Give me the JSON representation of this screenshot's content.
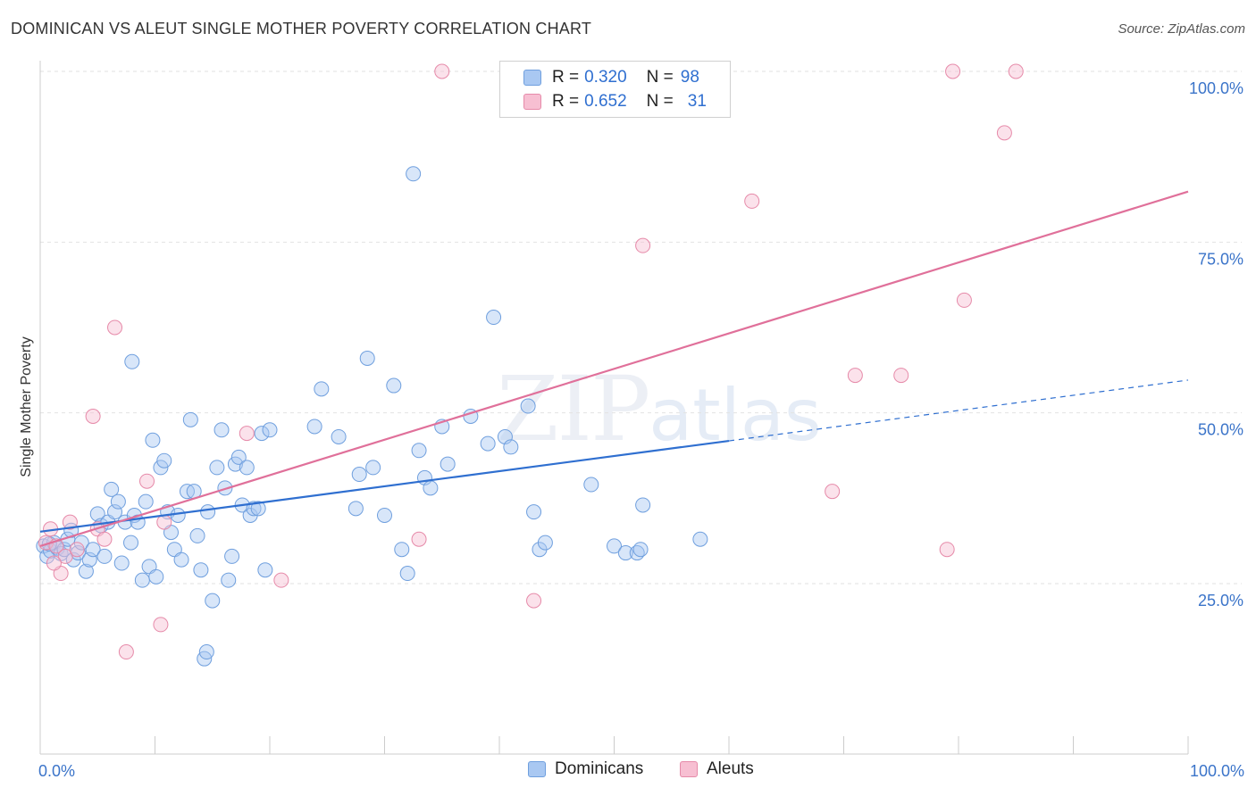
{
  "header": {
    "title": "DOMINICAN VS ALEUT SINGLE MOTHER POVERTY CORRELATION CHART",
    "source": "Source: ZipAtlas.com"
  },
  "watermark": {
    "zip": "ZIP",
    "atlas": "atlas"
  },
  "legend": {
    "rows": [
      {
        "r_label": "R =",
        "r_value": "0.320",
        "n_label": "N =",
        "n_value": "98",
        "color": "#a9c8f2",
        "border": "#6f9fde"
      },
      {
        "r_label": "R =",
        "r_value": "0.652",
        "n_label": "N =",
        "n_value": "31",
        "color": "#f7bfd2",
        "border": "#e68aa9"
      }
    ]
  },
  "bottom_legend": [
    {
      "label": "Dominicans",
      "color": "#a9c8f2",
      "border": "#6f9fde"
    },
    {
      "label": "Aleuts",
      "color": "#f7bfd2",
      "border": "#e68aa9"
    }
  ],
  "chart_data": {
    "type": "scatter",
    "title": "DOMINICAN VS ALEUT SINGLE MOTHER POVERTY CORRELATION CHART",
    "xlabel": "",
    "ylabel": "Single Mother Poverty",
    "xlim": [
      0,
      100
    ],
    "ylim": [
      0,
      105
    ],
    "x_tick_labels": [
      {
        "value": 0,
        "label": "0.0%"
      },
      {
        "value": 100,
        "label": "100.0%"
      }
    ],
    "y_tick_labels": [
      {
        "value": 25,
        "label": "25.0%"
      },
      {
        "value": 50,
        "label": "50.0%"
      },
      {
        "value": 75,
        "label": "75.0%"
      },
      {
        "value": 100,
        "label": "100.0%"
      }
    ],
    "grid": "horizontal dashed",
    "series": [
      {
        "name": "Dominicans",
        "color": "#6f9fde",
        "fill": "#a9c8f2",
        "trend": {
          "x": [
            0,
            60
          ],
          "y": [
            32.6,
            45.9
          ],
          "dashed_extension_to": [
            100,
            54.8
          ],
          "color": "#2f6fd0"
        },
        "points": [
          [
            0.3,
            30.5
          ],
          [
            0.6,
            29.0
          ],
          [
            0.9,
            29.8
          ],
          [
            1.2,
            31.0
          ],
          [
            1.5,
            30.2
          ],
          [
            1.8,
            29.4
          ],
          [
            2.1,
            30.0
          ],
          [
            2.4,
            31.5
          ],
          [
            2.7,
            32.8
          ],
          [
            2.9,
            28.5
          ],
          [
            3.3,
            29.5
          ],
          [
            3.6,
            31.0
          ],
          [
            4.0,
            26.8
          ],
          [
            4.3,
            28.5
          ],
          [
            4.6,
            30.0
          ],
          [
            5.0,
            35.2
          ],
          [
            5.3,
            33.5
          ],
          [
            5.6,
            29.0
          ],
          [
            5.9,
            34.0
          ],
          [
            6.2,
            38.8
          ],
          [
            6.5,
            35.5
          ],
          [
            6.8,
            37.0
          ],
          [
            7.1,
            28.0
          ],
          [
            7.4,
            34.0
          ],
          [
            7.9,
            31.0
          ],
          [
            8.2,
            35.0
          ],
          [
            8.5,
            34.0
          ],
          [
            8.9,
            25.5
          ],
          [
            9.2,
            37.0
          ],
          [
            9.5,
            27.5
          ],
          [
            9.8,
            46.0
          ],
          [
            10.1,
            26.0
          ],
          [
            10.5,
            42.0
          ],
          [
            10.8,
            43.0
          ],
          [
            11.1,
            35.5
          ],
          [
            11.4,
            32.5
          ],
          [
            11.7,
            30.0
          ],
          [
            12.0,
            35.0
          ],
          [
            12.3,
            28.5
          ],
          [
            12.8,
            38.5
          ],
          [
            13.1,
            49.0
          ],
          [
            13.4,
            38.5
          ],
          [
            13.7,
            32.0
          ],
          [
            14.0,
            27.0
          ],
          [
            14.3,
            14.0
          ],
          [
            14.6,
            35.5
          ],
          [
            15.0,
            22.5
          ],
          [
            15.4,
            42.0
          ],
          [
            15.8,
            47.5
          ],
          [
            16.1,
            39.0
          ],
          [
            16.4,
            25.5
          ],
          [
            16.7,
            29.0
          ],
          [
            17.0,
            42.5
          ],
          [
            17.3,
            43.5
          ],
          [
            17.6,
            36.5
          ],
          [
            18.0,
            42.0
          ],
          [
            18.3,
            35.0
          ],
          [
            18.6,
            36.0
          ],
          [
            19.0,
            36.0
          ],
          [
            19.3,
            47.0
          ],
          [
            19.6,
            27.0
          ],
          [
            20.0,
            47.5
          ],
          [
            8.0,
            57.5
          ],
          [
            14.5,
            15.0
          ],
          [
            23.9,
            48.0
          ],
          [
            24.5,
            53.5
          ],
          [
            26.0,
            46.5
          ],
          [
            27.5,
            36.0
          ],
          [
            27.8,
            41.0
          ],
          [
            28.5,
            58.0
          ],
          [
            29.0,
            42.0
          ],
          [
            30.0,
            35.0
          ],
          [
            30.8,
            54.0
          ],
          [
            31.5,
            30.0
          ],
          [
            32.0,
            26.5
          ],
          [
            32.5,
            85.0
          ],
          [
            33.0,
            44.5
          ],
          [
            33.5,
            40.5
          ],
          [
            34.0,
            39.0
          ],
          [
            35.0,
            48.0
          ],
          [
            35.5,
            42.5
          ],
          [
            37.5,
            49.5
          ],
          [
            39.0,
            45.5
          ],
          [
            39.5,
            64.0
          ],
          [
            40.5,
            46.5
          ],
          [
            41.0,
            45.0
          ],
          [
            42.5,
            51.0
          ],
          [
            43.0,
            35.5
          ],
          [
            43.5,
            30.0
          ],
          [
            44.0,
            31.0
          ],
          [
            48.0,
            39.5
          ],
          [
            50.0,
            30.5
          ],
          [
            51.0,
            29.5
          ],
          [
            52.0,
            29.5
          ],
          [
            52.5,
            36.5
          ],
          [
            57.5,
            31.5
          ],
          [
            52.3,
            30.0
          ],
          [
            0.8,
            30.8
          ]
        ]
      },
      {
        "name": "Aleuts",
        "color": "#e68aa9",
        "fill": "#f7bfd2",
        "trend": {
          "x": [
            0,
            100
          ],
          "y": [
            30.5,
            82.4
          ],
          "color": "#e0709a"
        },
        "points": [
          [
            0.5,
            31.0
          ],
          [
            0.9,
            33.0
          ],
          [
            1.4,
            30.5
          ],
          [
            1.8,
            26.5
          ],
          [
            2.2,
            29.0
          ],
          [
            2.6,
            34.0
          ],
          [
            3.2,
            30.0
          ],
          [
            4.6,
            49.5
          ],
          [
            5.0,
            33.0
          ],
          [
            5.6,
            31.5
          ],
          [
            6.5,
            62.5
          ],
          [
            7.5,
            15.0
          ],
          [
            9.3,
            40.0
          ],
          [
            10.5,
            19.0
          ],
          [
            10.8,
            34.0
          ],
          [
            18.0,
            47.0
          ],
          [
            21.0,
            25.5
          ],
          [
            33.0,
            31.5
          ],
          [
            35.0,
            100.0
          ],
          [
            43.0,
            22.5
          ],
          [
            52.5,
            74.5
          ],
          [
            62.0,
            81.0
          ],
          [
            69.0,
            38.5
          ],
          [
            71.0,
            55.5
          ],
          [
            75.0,
            55.5
          ],
          [
            79.0,
            30.0
          ],
          [
            79.5,
            100.0
          ],
          [
            80.5,
            66.5
          ],
          [
            84.0,
            91.0
          ],
          [
            85.0,
            100.0
          ],
          [
            1.2,
            28.0
          ]
        ]
      }
    ]
  }
}
